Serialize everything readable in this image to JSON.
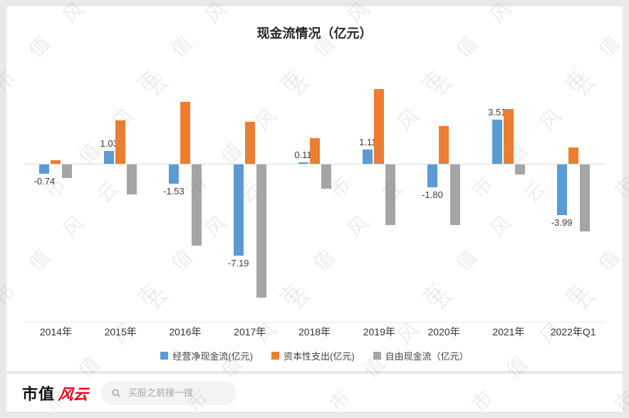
{
  "page": {
    "background": "#e9e9e9",
    "card_background": "#ffffff"
  },
  "chart_data": {
    "type": "bar",
    "title": "现金流情况（亿元）",
    "categories": [
      "2014年",
      "2015年",
      "2016年",
      "2017年",
      "2018年",
      "2019年",
      "2020年",
      "2021年",
      "2022年Q1"
    ],
    "series": [
      {
        "name": "经营净现金流(亿元)",
        "key": "operating-net-cash-flow",
        "color": "#5B9BD5",
        "values": [
          -0.74,
          1.03,
          -1.53,
          -7.19,
          0.11,
          1.11,
          -1.8,
          3.51,
          -3.99
        ],
        "labels": [
          "-0.74",
          "1.03",
          "-1.53",
          "-7.19",
          "0.11",
          "1.11",
          "-1.80",
          "3.51",
          "-3.99"
        ]
      },
      {
        "name": "资本性支出(亿元)",
        "key": "capital-expenditure",
        "color": "#ED7D31",
        "values": [
          0.3,
          3.4,
          4.9,
          3.3,
          2.0,
          5.9,
          3.0,
          4.3,
          1.3
        ]
      },
      {
        "name": "自由现金流（亿元）",
        "key": "free-cash-flow",
        "color": "#A5A5A5",
        "values": [
          -1.04,
          -2.37,
          -6.43,
          -10.49,
          -1.89,
          -4.79,
          -4.8,
          -0.79,
          -5.29
        ]
      }
    ],
    "legend_position": "bottom",
    "grid": false,
    "value_axis": {
      "visible": false,
      "approx_range": [
        -11,
        7
      ]
    }
  },
  "watermark": {
    "text": "市值风云"
  },
  "footer": {
    "logo_black": "市值",
    "logo_red": "风云",
    "search_placeholder": "买股之前搜一搜"
  }
}
